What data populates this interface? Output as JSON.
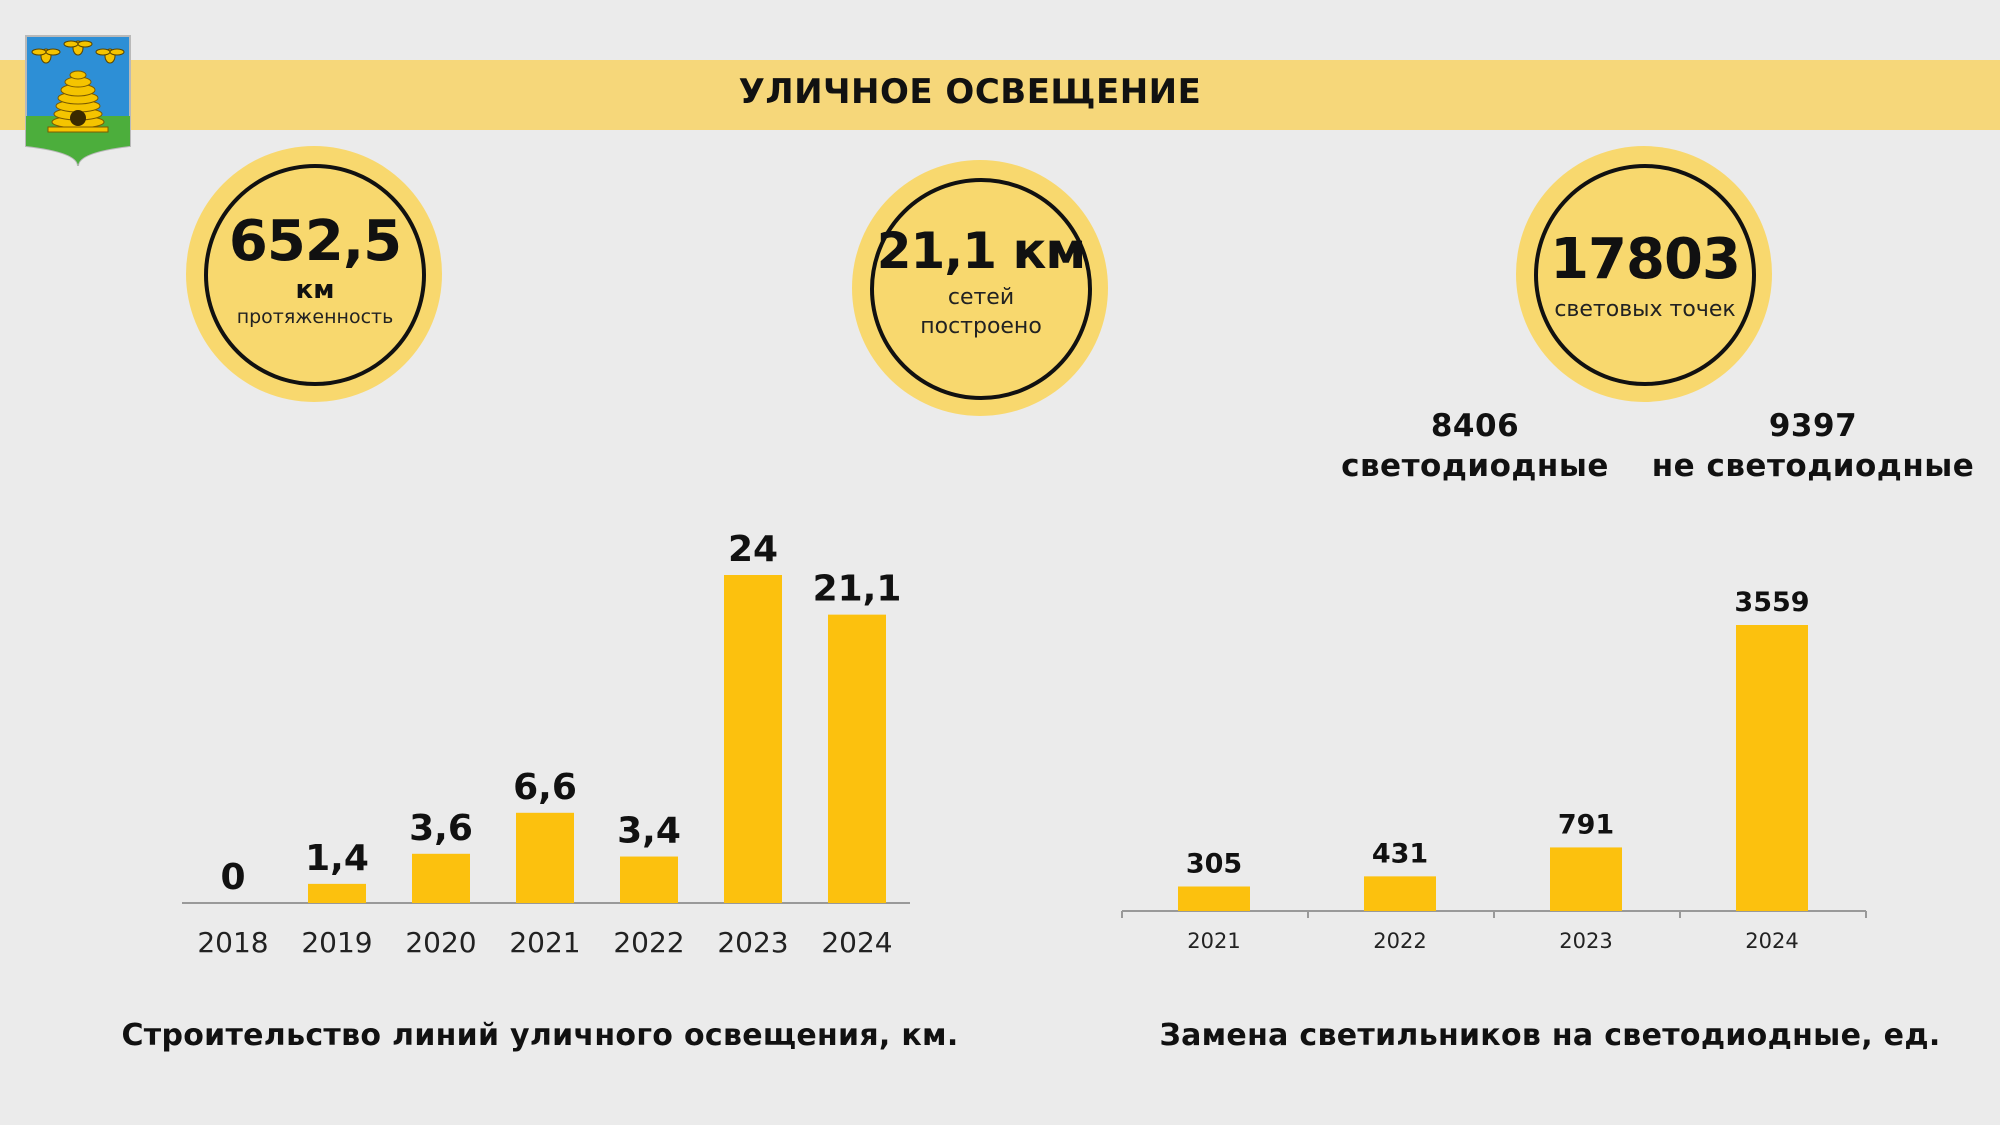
{
  "header": {
    "title": "УЛИЧНОЕ ОСВЕЩЕНИЕ"
  },
  "emblem": {
    "icon": "coat-of-arms-beehive-icon",
    "colors": {
      "sky": "#2d8fd6",
      "field": "#4cae3c",
      "hive": "#f5c400"
    }
  },
  "kpis": [
    {
      "value": "652,5",
      "unit": "км",
      "caption": "протяженность"
    },
    {
      "value": "21,1 км",
      "unit": "",
      "caption_line1": "сетей",
      "caption_line2": "построено"
    },
    {
      "value": "17803",
      "unit": "",
      "caption": "световых точек"
    }
  ],
  "lamp_breakdown": [
    {
      "value": "8406",
      "label": "светодиодные"
    },
    {
      "value": "9397",
      "label": "не светодиодные"
    }
  ],
  "colors": {
    "bar": "#fcc10e",
    "accent": "#f6d77a",
    "circle": "#f8d86e",
    "axis": "#999999"
  },
  "chart_data": [
    {
      "type": "bar",
      "title": "Строительство линий уличного освещения, км.",
      "categories": [
        "2018",
        "2019",
        "2020",
        "2021",
        "2022",
        "2023",
        "2024"
      ],
      "values": [
        0,
        1.4,
        3.6,
        6.6,
        3.4,
        24,
        21.1
      ],
      "value_labels": [
        "0",
        "1,4",
        "3,6",
        "6,6",
        "3,4",
        "24",
        "21,1"
      ],
      "ylim": [
        0,
        24
      ],
      "grid": false,
      "legend": "none"
    },
    {
      "type": "bar",
      "title": "Замена светильников на светодиодные, ед.",
      "categories": [
        "2021",
        "2022",
        "2023",
        "2024"
      ],
      "values": [
        305,
        431,
        791,
        3559
      ],
      "value_labels": [
        "305",
        "431",
        "791",
        "3559"
      ],
      "ylim": [
        0,
        3559
      ],
      "grid": false,
      "legend": "none"
    }
  ]
}
